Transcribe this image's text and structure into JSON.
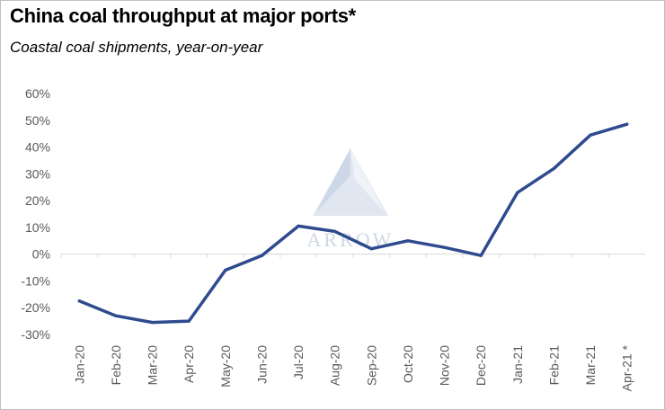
{
  "header": {
    "title": "China coal throughput at major ports*",
    "subtitle": "Coastal coal shipments, year-on-year"
  },
  "watermark": {
    "text": "ARROW"
  },
  "chart_data": {
    "type": "line",
    "title": "China coal throughput at major ports*",
    "subtitle": "Coastal coal shipments, year-on-year",
    "categories": [
      "Jan-20",
      "Feb-20",
      "Mar-20",
      "Apr-20",
      "May-20",
      "Jun-20",
      "Jul-20",
      "Aug-20",
      "Sep-20",
      "Oct-20",
      "Nov-20",
      "Dec-20",
      "Jan-21",
      "Feb-21",
      "Mar-21",
      "Apr-21 *"
    ],
    "series": [
      {
        "values": [
          -17.5,
          -23,
          -25.5,
          -25,
          -6,
          -0.5,
          10.5,
          8.5,
          2,
          5,
          2.5,
          -0.5,
          23,
          32,
          44.5,
          48.5
        ]
      }
    ],
    "ylim": [
      -30,
      60
    ],
    "yticks": [
      -30,
      -20,
      -10,
      0,
      10,
      20,
      30,
      40,
      50,
      60
    ],
    "ytick_labels": [
      "-30%",
      "-20%",
      "-10%",
      "0%",
      "10%",
      "20%",
      "30%",
      "40%",
      "50%",
      "60%"
    ],
    "grid": false,
    "colors": {
      "line": "#2f4b8f",
      "axis": "#d9d9d9",
      "tick_text": "#595959"
    }
  }
}
